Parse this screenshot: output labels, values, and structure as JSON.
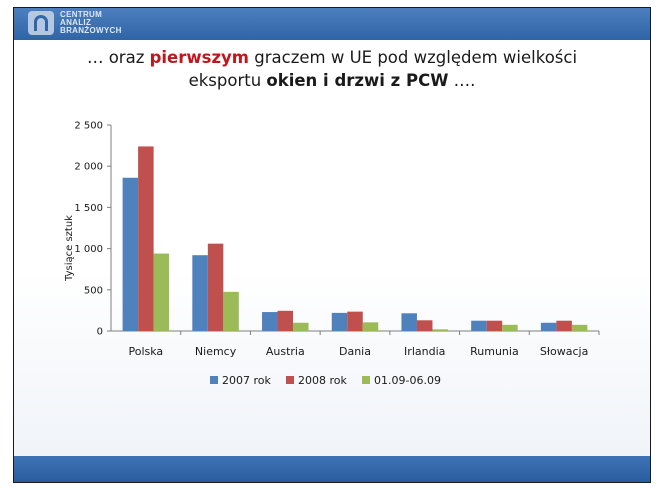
{
  "header": {
    "logo_lines": [
      "CENTRUM",
      "ANALIZ",
      "BRANŻOWYCH"
    ]
  },
  "title": {
    "part1": "… oraz ",
    "highlight": "pierwszym",
    "part2": " graczem w UE pod względem wielkości",
    "part3": "eksportu ",
    "bold": "okien i drzwi z PCW",
    "part4": " …."
  },
  "colors": {
    "accent_bar": "#2f64a6",
    "highlight": "#c0171d"
  },
  "chart_data": {
    "type": "bar",
    "ylabel": "Tysiące sztuk",
    "xlabel": "",
    "categories": [
      "Polska",
      "Niemcy",
      "Austria",
      "Dania",
      "Irlandia",
      "Rumunia",
      "Słowacja"
    ],
    "series": [
      {
        "name": "2007 rok",
        "color": "#4f81bd",
        "values": [
          1860,
          920,
          230,
          220,
          215,
          125,
          100
        ]
      },
      {
        "name": "2008 rok",
        "color": "#c0504d",
        "values": [
          2240,
          1060,
          245,
          235,
          130,
          125,
          125
        ]
      },
      {
        "name": "01.09-06.09",
        "color": "#9bbb59",
        "values": [
          940,
          475,
          100,
          105,
          20,
          75,
          75
        ]
      }
    ],
    "ylim": [
      0,
      2500
    ],
    "yticks": [
      0,
      500,
      1000,
      1500,
      2000,
      2500
    ],
    "ytick_labels": [
      "0",
      "500",
      "1 000",
      "1 500",
      "2 000",
      "2 500"
    ],
    "grid": false,
    "legend": "bottom"
  }
}
